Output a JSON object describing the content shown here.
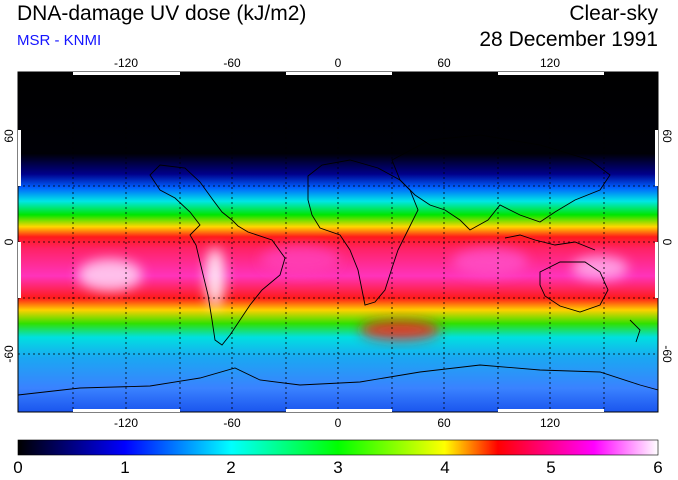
{
  "header": {
    "title": "DNA-damage UV dose (kJ/m2)",
    "subtitle": "MSR - KNMI",
    "condition": "Clear-sky",
    "date": "28 December 1991"
  },
  "map": {
    "lon_ticks": [
      "-120",
      "-60",
      "0",
      "60",
      "120"
    ],
    "lat_ticks": [
      "60",
      "0",
      "-60"
    ],
    "lon_range": [
      -180,
      180
    ],
    "lat_range": [
      -90,
      90
    ],
    "gridlines": "dashed every 30 degrees",
    "coastlines": true
  },
  "colorbar": {
    "labels": [
      "0",
      "1",
      "2",
      "3",
      "4",
      "5",
      "6"
    ],
    "range": [
      0,
      6
    ],
    "colors": [
      "#000000",
      "#0000ff",
      "#00ffff",
      "#00ff00",
      "#ffff00",
      "#ff0000",
      "#ff00ff",
      "#ffffff"
    ]
  }
}
